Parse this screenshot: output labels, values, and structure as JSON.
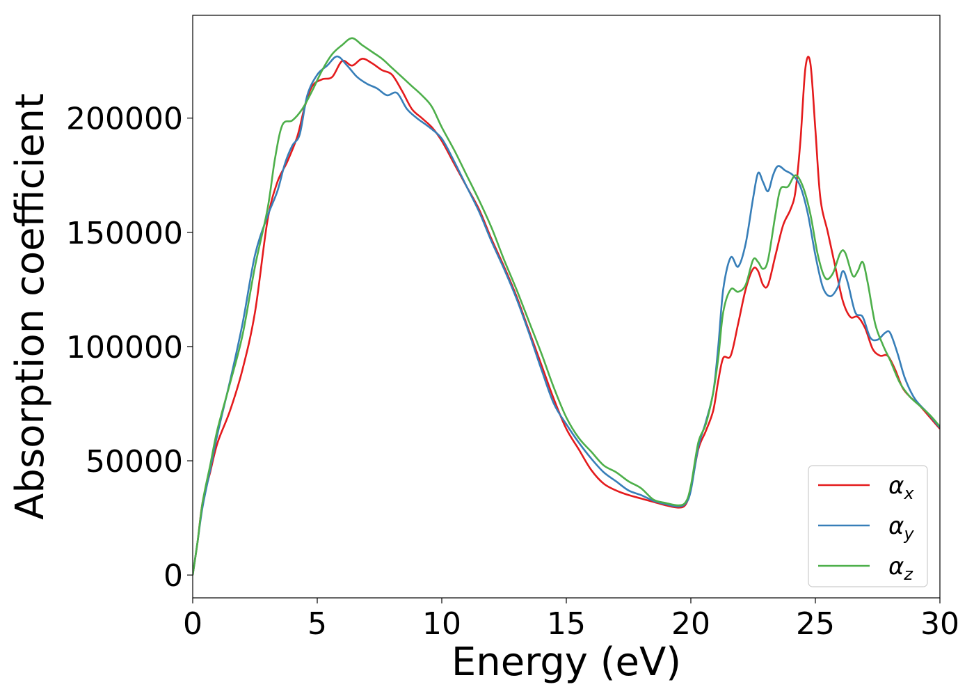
{
  "chart_data": {
    "type": "line",
    "title": "",
    "xlabel": "Energy (eV)",
    "ylabel": "Absorption coefficient",
    "xlim": [
      0,
      30
    ],
    "ylim": [
      -10000,
      245000
    ],
    "xticks": [
      0,
      5,
      10,
      15,
      20,
      25,
      30
    ],
    "xtick_labels": [
      "0",
      "5",
      "10",
      "15",
      "20",
      "25",
      "30"
    ],
    "yticks": [
      0,
      50000,
      100000,
      150000,
      200000
    ],
    "ytick_labels": [
      "0",
      "50000",
      "100000",
      "150000",
      "200000"
    ],
    "grid": false,
    "legend": {
      "position": "lower-right",
      "entries": [
        {
          "symbol": "α",
          "sub": "x",
          "color": "#e41a1c"
        },
        {
          "symbol": "α",
          "sub": "y",
          "color": "#377eb8"
        },
        {
          "symbol": "α",
          "sub": "z",
          "color": "#4daf4a"
        }
      ]
    },
    "series": [
      {
        "color": "#e41a1c",
        "points": [
          [
            0,
            0
          ],
          [
            0.2,
            15000
          ],
          [
            0.4,
            32000
          ],
          [
            0.7,
            45000
          ],
          [
            1.0,
            58000
          ],
          [
            1.5,
            72000
          ],
          [
            2.0,
            90000
          ],
          [
            2.5,
            115000
          ],
          [
            3.0,
            155000
          ],
          [
            3.4,
            172000
          ],
          [
            3.8,
            181000
          ],
          [
            4.2,
            192000
          ],
          [
            4.5,
            205000
          ],
          [
            4.8,
            214000
          ],
          [
            5.2,
            217000
          ],
          [
            5.6,
            218000
          ],
          [
            6.0,
            225000
          ],
          [
            6.4,
            223000
          ],
          [
            6.8,
            226000
          ],
          [
            7.2,
            224000
          ],
          [
            7.6,
            221000
          ],
          [
            8.0,
            219000
          ],
          [
            8.4,
            212000
          ],
          [
            8.8,
            204000
          ],
          [
            9.2,
            200000
          ],
          [
            9.6,
            196000
          ],
          [
            10.0,
            190000
          ],
          [
            10.5,
            180000
          ],
          [
            11.0,
            170000
          ],
          [
            11.5,
            160000
          ],
          [
            12.0,
            147000
          ],
          [
            12.5,
            135000
          ],
          [
            13.0,
            122000
          ],
          [
            13.5,
            107000
          ],
          [
            14.0,
            92000
          ],
          [
            14.5,
            77000
          ],
          [
            15.0,
            64000
          ],
          [
            15.5,
            55000
          ],
          [
            16.0,
            46000
          ],
          [
            16.5,
            40000
          ],
          [
            17.0,
            37000
          ],
          [
            17.5,
            35000
          ],
          [
            18.0,
            33500
          ],
          [
            18.5,
            32000
          ],
          [
            19.0,
            30500
          ],
          [
            19.5,
            29500
          ],
          [
            19.8,
            31000
          ],
          [
            20.0,
            38000
          ],
          [
            20.3,
            55000
          ],
          [
            20.6,
            63000
          ],
          [
            20.9,
            72000
          ],
          [
            21.1,
            85000
          ],
          [
            21.3,
            95000
          ],
          [
            21.6,
            96000
          ],
          [
            21.9,
            110000
          ],
          [
            22.2,
            125000
          ],
          [
            22.5,
            134000
          ],
          [
            22.7,
            133000
          ],
          [
            22.9,
            127000
          ],
          [
            23.1,
            127000
          ],
          [
            23.4,
            140000
          ],
          [
            23.7,
            153000
          ],
          [
            24.0,
            160000
          ],
          [
            24.2,
            168000
          ],
          [
            24.4,
            190000
          ],
          [
            24.6,
            222000
          ],
          [
            24.8,
            224000
          ],
          [
            25.0,
            195000
          ],
          [
            25.2,
            165000
          ],
          [
            25.5,
            150000
          ],
          [
            25.8,
            135000
          ],
          [
            26.1,
            120000
          ],
          [
            26.4,
            113000
          ],
          [
            26.7,
            113000
          ],
          [
            27.0,
            108000
          ],
          [
            27.3,
            99000
          ],
          [
            27.6,
            96000
          ],
          [
            27.9,
            96000
          ],
          [
            28.2,
            90000
          ],
          [
            28.5,
            82000
          ],
          [
            28.8,
            78000
          ],
          [
            29.2,
            74000
          ],
          [
            29.6,
            69000
          ],
          [
            30.0,
            64000
          ]
        ]
      },
      {
        "color": "#377eb8",
        "points": [
          [
            0,
            0
          ],
          [
            0.2,
            15000
          ],
          [
            0.4,
            30000
          ],
          [
            0.7,
            46000
          ],
          [
            1.0,
            62000
          ],
          [
            1.5,
            85000
          ],
          [
            2.0,
            110000
          ],
          [
            2.5,
            140000
          ],
          [
            3.0,
            157000
          ],
          [
            3.4,
            168000
          ],
          [
            3.7,
            180000
          ],
          [
            4.0,
            188000
          ],
          [
            4.3,
            193000
          ],
          [
            4.6,
            210000
          ],
          [
            5.0,
            219000
          ],
          [
            5.4,
            223000
          ],
          [
            5.8,
            227000
          ],
          [
            6.2,
            223000
          ],
          [
            6.6,
            218000
          ],
          [
            7.0,
            215000
          ],
          [
            7.4,
            213000
          ],
          [
            7.8,
            210000
          ],
          [
            8.2,
            211000
          ],
          [
            8.6,
            204000
          ],
          [
            9.0,
            200000
          ],
          [
            9.5,
            196000
          ],
          [
            10.0,
            191000
          ],
          [
            10.5,
            181000
          ],
          [
            11.0,
            170000
          ],
          [
            11.5,
            159000
          ],
          [
            12.0,
            146000
          ],
          [
            12.5,
            134000
          ],
          [
            13.0,
            121000
          ],
          [
            13.5,
            106000
          ],
          [
            14.0,
            90000
          ],
          [
            14.5,
            75000
          ],
          [
            15.0,
            66000
          ],
          [
            15.5,
            58000
          ],
          [
            16.0,
            51000
          ],
          [
            16.5,
            45000
          ],
          [
            17.0,
            41000
          ],
          [
            17.5,
            37000
          ],
          [
            18.0,
            35000
          ],
          [
            18.5,
            32500
          ],
          [
            19.0,
            31000
          ],
          [
            19.5,
            30000
          ],
          [
            19.8,
            31500
          ],
          [
            20.0,
            37000
          ],
          [
            20.3,
            56000
          ],
          [
            20.6,
            67000
          ],
          [
            20.9,
            80000
          ],
          [
            21.1,
            100000
          ],
          [
            21.3,
            125000
          ],
          [
            21.6,
            139000
          ],
          [
            21.9,
            135000
          ],
          [
            22.2,
            145000
          ],
          [
            22.5,
            165000
          ],
          [
            22.7,
            176000
          ],
          [
            22.9,
            172000
          ],
          [
            23.1,
            168000
          ],
          [
            23.3,
            175000
          ],
          [
            23.5,
            179000
          ],
          [
            23.8,
            177000
          ],
          [
            24.1,
            175000
          ],
          [
            24.4,
            170000
          ],
          [
            24.7,
            158000
          ],
          [
            25.0,
            140000
          ],
          [
            25.3,
            126000
          ],
          [
            25.6,
            122000
          ],
          [
            25.9,
            126000
          ],
          [
            26.1,
            133000
          ],
          [
            26.3,
            128000
          ],
          [
            26.6,
            115000
          ],
          [
            26.9,
            113000
          ],
          [
            27.2,
            104000
          ],
          [
            27.5,
            103000
          ],
          [
            27.8,
            106000
          ],
          [
            28.0,
            106000
          ],
          [
            28.3,
            97000
          ],
          [
            28.6,
            86000
          ],
          [
            29.0,
            77000
          ],
          [
            29.5,
            71000
          ],
          [
            30.0,
            64500
          ]
        ]
      },
      {
        "color": "#4daf4a",
        "points": [
          [
            0,
            0
          ],
          [
            0.2,
            15000
          ],
          [
            0.4,
            32000
          ],
          [
            0.7,
            48000
          ],
          [
            1.0,
            64000
          ],
          [
            1.5,
            84000
          ],
          [
            2.0,
            105000
          ],
          [
            2.5,
            135000
          ],
          [
            3.0,
            160000
          ],
          [
            3.3,
            182000
          ],
          [
            3.6,
            197000
          ],
          [
            4.0,
            199000
          ],
          [
            4.4,
            204000
          ],
          [
            4.8,
            212000
          ],
          [
            5.2,
            221000
          ],
          [
            5.6,
            228000
          ],
          [
            6.0,
            232000
          ],
          [
            6.4,
            235000
          ],
          [
            6.8,
            232000
          ],
          [
            7.2,
            229000
          ],
          [
            7.6,
            226000
          ],
          [
            8.0,
            222000
          ],
          [
            8.4,
            218000
          ],
          [
            8.8,
            214000
          ],
          [
            9.2,
            210000
          ],
          [
            9.6,
            205000
          ],
          [
            10.0,
            196000
          ],
          [
            10.5,
            186000
          ],
          [
            11.0,
            175000
          ],
          [
            11.5,
            164000
          ],
          [
            12.0,
            152000
          ],
          [
            12.5,
            138000
          ],
          [
            13.0,
            125000
          ],
          [
            13.5,
            111000
          ],
          [
            14.0,
            97000
          ],
          [
            14.5,
            82000
          ],
          [
            15.0,
            69000
          ],
          [
            15.5,
            60000
          ],
          [
            16.0,
            54000
          ],
          [
            16.5,
            48000
          ],
          [
            17.0,
            45000
          ],
          [
            17.5,
            41000
          ],
          [
            18.0,
            38000
          ],
          [
            18.5,
            33000
          ],
          [
            19.0,
            31500
          ],
          [
            19.5,
            30500
          ],
          [
            19.8,
            32000
          ],
          [
            20.0,
            39000
          ],
          [
            20.3,
            58000
          ],
          [
            20.6,
            66000
          ],
          [
            20.9,
            80000
          ],
          [
            21.1,
            95000
          ],
          [
            21.3,
            115000
          ],
          [
            21.6,
            125000
          ],
          [
            21.9,
            124000
          ],
          [
            22.2,
            127000
          ],
          [
            22.5,
            138000
          ],
          [
            22.7,
            137000
          ],
          [
            22.9,
            134000
          ],
          [
            23.1,
            138000
          ],
          [
            23.4,
            158000
          ],
          [
            23.6,
            169000
          ],
          [
            23.9,
            170000
          ],
          [
            24.2,
            175000
          ],
          [
            24.5,
            170000
          ],
          [
            24.8,
            158000
          ],
          [
            25.1,
            140000
          ],
          [
            25.4,
            130000
          ],
          [
            25.7,
            132000
          ],
          [
            26.0,
            141000
          ],
          [
            26.2,
            141000
          ],
          [
            26.5,
            131000
          ],
          [
            26.7,
            133000
          ],
          [
            26.9,
            137000
          ],
          [
            27.1,
            128000
          ],
          [
            27.4,
            110000
          ],
          [
            27.7,
            101000
          ],
          [
            28.0,
            94000
          ],
          [
            28.4,
            84000
          ],
          [
            28.8,
            78000
          ],
          [
            29.2,
            74000
          ],
          [
            29.6,
            70000
          ],
          [
            30.0,
            65000
          ]
        ]
      }
    ]
  }
}
